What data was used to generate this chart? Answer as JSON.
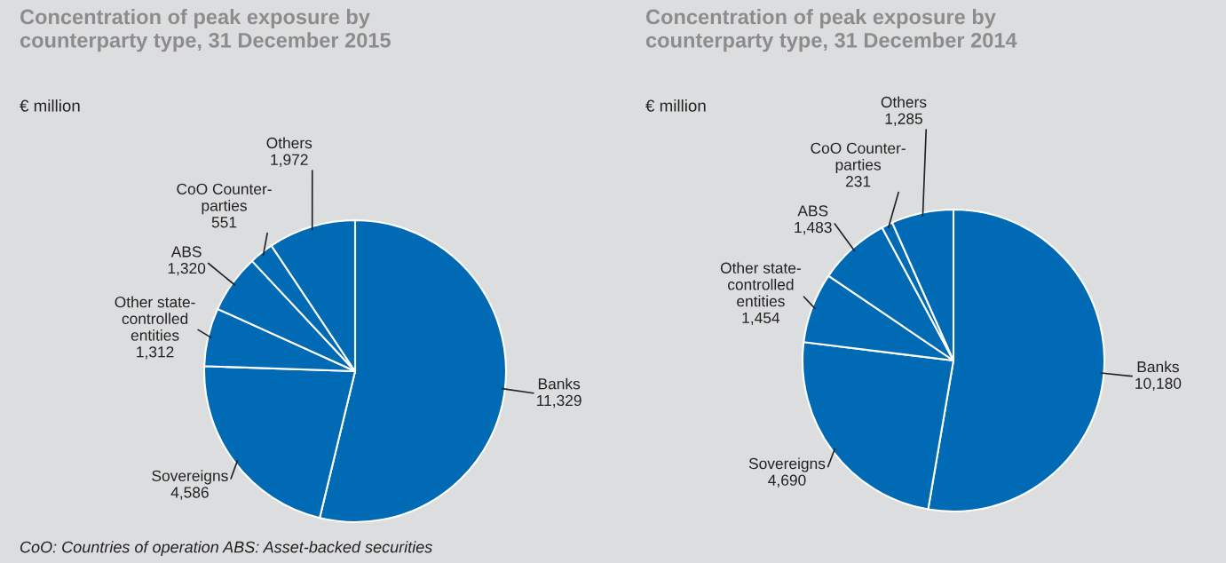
{
  "chart_data": [
    {
      "type": "pie",
      "title": "Concentration of peak exposure by\ncounterparty type, 31 December 2015",
      "subtitle": "€ million",
      "categories": [
        "Banks",
        "Sovereigns",
        "Other state-\ncontrolled\nentities",
        "ABS",
        "CoO Counter-\nparties",
        "Others"
      ],
      "values": [
        11329,
        4586,
        1312,
        1320,
        551,
        1972
      ],
      "colors": [
        "#006ab4",
        "#006ab4",
        "#006ab4",
        "#006ab4",
        "#006ab4",
        "#006ab4"
      ],
      "value_labels": [
        "11,329",
        "4,586",
        "1,312",
        "1,320",
        "551",
        "1,972"
      ],
      "annotations": [
        "CoO: Countries of operation ABS: Asset-backed securities"
      ]
    },
    {
      "type": "pie",
      "title": "Concentration of peak exposure by\ncounterparty type, 31 December 2014",
      "subtitle": "€ million",
      "categories": [
        "Banks",
        "Sovereigns",
        "Other state-\ncontrolled\nentities",
        "ABS",
        "CoO Counter-\nparties",
        "Others"
      ],
      "values": [
        10180,
        4690,
        1454,
        1483,
        231,
        1285
      ],
      "colors": [
        "#006ab4",
        "#006ab4",
        "#006ab4",
        "#006ab4",
        "#006ab4",
        "#006ab4"
      ],
      "value_labels": [
        "10,180",
        "4,690",
        "1,454",
        "1,483",
        "231",
        "1,285"
      ]
    }
  ]
}
